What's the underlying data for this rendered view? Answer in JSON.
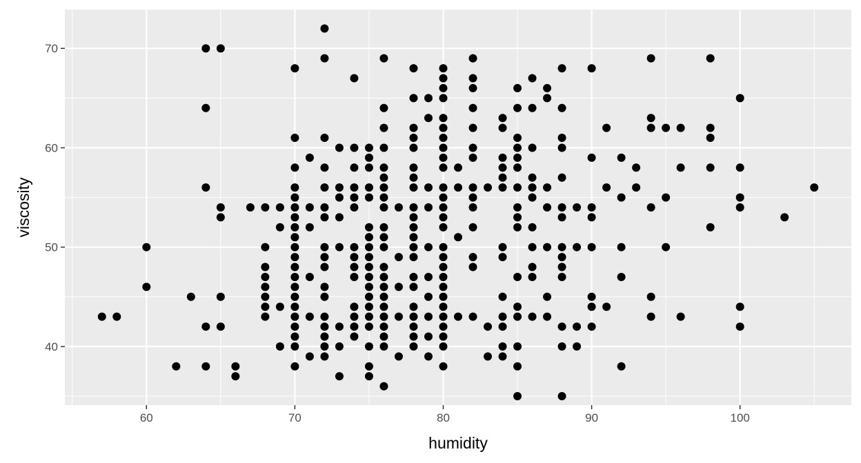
{
  "chart_data": {
    "type": "scatter",
    "title": "",
    "xlabel": "humidity",
    "ylabel": "viscosity",
    "xlim": [
      54.5,
      107.5
    ],
    "ylim": [
      34.1,
      73.9
    ],
    "grid": true,
    "legend": "none",
    "x_ticks": [
      {
        "value": 60,
        "label": "60"
      },
      {
        "value": 70,
        "label": "70"
      },
      {
        "value": 80,
        "label": "80"
      },
      {
        "value": 90,
        "label": "90"
      },
      {
        "value": 100,
        "label": "100"
      }
    ],
    "y_ticks": [
      {
        "value": 40,
        "label": "40"
      },
      {
        "value": 50,
        "label": "50"
      },
      {
        "value": 60,
        "label": "60"
      },
      {
        "value": 70,
        "label": "70"
      }
    ],
    "colors": {
      "panel": "#ebebeb",
      "grid": "#ffffff",
      "point": "#000000",
      "axis_text": "#4d4d4d",
      "tick": "#333333"
    },
    "points": [
      [
        57,
        43
      ],
      [
        58,
        43
      ],
      [
        60,
        50
      ],
      [
        60,
        46
      ],
      [
        62,
        38
      ],
      [
        63,
        45
      ],
      [
        64,
        70
      ],
      [
        64,
        64
      ],
      [
        64,
        56
      ],
      [
        64,
        42
      ],
      [
        64,
        38
      ],
      [
        65,
        70
      ],
      [
        65,
        54
      ],
      [
        65,
        53
      ],
      [
        65,
        45
      ],
      [
        65,
        42
      ],
      [
        66,
        38
      ],
      [
        66,
        37
      ],
      [
        67,
        54
      ],
      [
        68,
        54
      ],
      [
        68,
        50
      ],
      [
        68,
        48
      ],
      [
        68,
        47
      ],
      [
        68,
        46
      ],
      [
        68,
        45
      ],
      [
        68,
        44
      ],
      [
        68,
        43
      ],
      [
        69,
        54
      ],
      [
        69,
        52
      ],
      [
        69,
        44
      ],
      [
        69,
        40
      ],
      [
        70,
        68
      ],
      [
        70,
        61
      ],
      [
        70,
        58
      ],
      [
        70,
        56
      ],
      [
        70,
        55
      ],
      [
        70,
        54
      ],
      [
        70,
        53
      ],
      [
        70,
        52
      ],
      [
        70,
        51
      ],
      [
        70,
        50
      ],
      [
        70,
        49
      ],
      [
        70,
        48
      ],
      [
        70,
        47
      ],
      [
        70,
        46
      ],
      [
        70,
        45
      ],
      [
        70,
        44
      ],
      [
        70,
        43
      ],
      [
        70,
        42
      ],
      [
        70,
        41
      ],
      [
        70,
        40
      ],
      [
        70,
        38
      ],
      [
        71,
        59
      ],
      [
        71,
        54
      ],
      [
        71,
        52
      ],
      [
        71,
        47
      ],
      [
        71,
        43
      ],
      [
        71,
        39
      ],
      [
        72,
        72
      ],
      [
        72,
        69
      ],
      [
        72,
        61
      ],
      [
        72,
        58
      ],
      [
        72,
        56
      ],
      [
        72,
        54
      ],
      [
        72,
        53
      ],
      [
        72,
        50
      ],
      [
        72,
        49
      ],
      [
        72,
        48
      ],
      [
        72,
        46
      ],
      [
        72,
        45
      ],
      [
        72,
        43
      ],
      [
        72,
        42
      ],
      [
        72,
        41
      ],
      [
        72,
        40
      ],
      [
        72,
        39
      ],
      [
        73,
        60
      ],
      [
        73,
        56
      ],
      [
        73,
        55
      ],
      [
        73,
        53
      ],
      [
        73,
        50
      ],
      [
        73,
        42
      ],
      [
        73,
        40
      ],
      [
        73,
        37
      ],
      [
        74,
        67
      ],
      [
        74,
        60
      ],
      [
        74,
        58
      ],
      [
        74,
        56
      ],
      [
        74,
        55
      ],
      [
        74,
        54
      ],
      [
        74,
        50
      ],
      [
        74,
        49
      ],
      [
        74,
        48
      ],
      [
        74,
        47
      ],
      [
        74,
        44
      ],
      [
        74,
        43
      ],
      [
        74,
        42
      ],
      [
        74,
        41
      ],
      [
        75,
        60
      ],
      [
        75,
        59
      ],
      [
        75,
        58
      ],
      [
        75,
        56
      ],
      [
        75,
        55
      ],
      [
        75,
        52
      ],
      [
        75,
        51
      ],
      [
        75,
        50
      ],
      [
        75,
        49
      ],
      [
        75,
        48
      ],
      [
        75,
        47
      ],
      [
        75,
        46
      ],
      [
        75,
        45
      ],
      [
        75,
        44
      ],
      [
        75,
        43
      ],
      [
        75,
        42
      ],
      [
        75,
        40
      ],
      [
        75,
        38
      ],
      [
        75,
        37
      ],
      [
        76,
        69
      ],
      [
        76,
        64
      ],
      [
        76,
        62
      ],
      [
        76,
        60
      ],
      [
        76,
        58
      ],
      [
        76,
        57
      ],
      [
        76,
        56
      ],
      [
        76,
        55
      ],
      [
        76,
        54
      ],
      [
        76,
        52
      ],
      [
        76,
        51
      ],
      [
        76,
        50
      ],
      [
        76,
        48
      ],
      [
        76,
        47
      ],
      [
        76,
        46
      ],
      [
        76,
        45
      ],
      [
        76,
        44
      ],
      [
        76,
        43
      ],
      [
        76,
        42
      ],
      [
        76,
        41
      ],
      [
        76,
        40
      ],
      [
        76,
        36
      ],
      [
        77,
        54
      ],
      [
        77,
        49
      ],
      [
        77,
        46
      ],
      [
        77,
        43
      ],
      [
        77,
        39
      ],
      [
        78,
        68
      ],
      [
        78,
        65
      ],
      [
        78,
        62
      ],
      [
        78,
        61
      ],
      [
        78,
        60
      ],
      [
        78,
        58
      ],
      [
        78,
        57
      ],
      [
        78,
        56
      ],
      [
        78,
        54
      ],
      [
        78,
        53
      ],
      [
        78,
        52
      ],
      [
        78,
        51
      ],
      [
        78,
        50
      ],
      [
        78,
        49
      ],
      [
        78,
        47
      ],
      [
        78,
        46
      ],
      [
        78,
        44
      ],
      [
        78,
        43
      ],
      [
        78,
        42
      ],
      [
        78,
        41
      ],
      [
        78,
        40
      ],
      [
        79,
        65
      ],
      [
        79,
        63
      ],
      [
        79,
        56
      ],
      [
        79,
        54
      ],
      [
        79,
        50
      ],
      [
        79,
        47
      ],
      [
        79,
        45
      ],
      [
        79,
        43
      ],
      [
        79,
        41
      ],
      [
        79,
        39
      ],
      [
        80,
        68
      ],
      [
        80,
        67
      ],
      [
        80,
        66
      ],
      [
        80,
        65
      ],
      [
        80,
        63
      ],
      [
        80,
        62
      ],
      [
        80,
        61
      ],
      [
        80,
        60
      ],
      [
        80,
        59
      ],
      [
        80,
        58
      ],
      [
        80,
        56
      ],
      [
        80,
        55
      ],
      [
        80,
        54
      ],
      [
        80,
        53
      ],
      [
        80,
        52
      ],
      [
        80,
        50
      ],
      [
        80,
        49
      ],
      [
        80,
        48
      ],
      [
        80,
        47
      ],
      [
        80,
        46
      ],
      [
        80,
        45
      ],
      [
        80,
        44
      ],
      [
        80,
        43
      ],
      [
        80,
        42
      ],
      [
        80,
        41
      ],
      [
        80,
        40
      ],
      [
        80,
        38
      ],
      [
        81,
        58
      ],
      [
        81,
        56
      ],
      [
        81,
        51
      ],
      [
        81,
        43
      ],
      [
        82,
        69
      ],
      [
        82,
        67
      ],
      [
        82,
        66
      ],
      [
        82,
        64
      ],
      [
        82,
        62
      ],
      [
        82,
        60
      ],
      [
        82,
        59
      ],
      [
        82,
        56
      ],
      [
        82,
        55
      ],
      [
        82,
        54
      ],
      [
        82,
        52
      ],
      [
        82,
        49
      ],
      [
        82,
        48
      ],
      [
        82,
        43
      ],
      [
        83,
        56
      ],
      [
        83,
        42
      ],
      [
        83,
        39
      ],
      [
        84,
        63
      ],
      [
        84,
        62
      ],
      [
        84,
        59
      ],
      [
        84,
        58
      ],
      [
        84,
        57
      ],
      [
        84,
        56
      ],
      [
        84,
        50
      ],
      [
        84,
        49
      ],
      [
        84,
        45
      ],
      [
        84,
        43
      ],
      [
        84,
        42
      ],
      [
        84,
        40
      ],
      [
        84,
        39
      ],
      [
        85,
        66
      ],
      [
        85,
        64
      ],
      [
        85,
        61
      ],
      [
        85,
        60
      ],
      [
        85,
        59
      ],
      [
        85,
        58
      ],
      [
        85,
        56
      ],
      [
        85,
        54
      ],
      [
        85,
        53
      ],
      [
        85,
        52
      ],
      [
        85,
        47
      ],
      [
        85,
        44
      ],
      [
        85,
        43
      ],
      [
        85,
        40
      ],
      [
        85,
        38
      ],
      [
        85,
        35
      ],
      [
        86,
        67
      ],
      [
        86,
        64
      ],
      [
        86,
        60
      ],
      [
        86,
        57
      ],
      [
        86,
        56
      ],
      [
        86,
        55
      ],
      [
        86,
        52
      ],
      [
        86,
        50
      ],
      [
        86,
        48
      ],
      [
        86,
        47
      ],
      [
        86,
        43
      ],
      [
        87,
        66
      ],
      [
        87,
        65
      ],
      [
        87,
        56
      ],
      [
        87,
        54
      ],
      [
        87,
        50
      ],
      [
        87,
        45
      ],
      [
        87,
        43
      ],
      [
        88,
        68
      ],
      [
        88,
        64
      ],
      [
        88,
        61
      ],
      [
        88,
        60
      ],
      [
        88,
        57
      ],
      [
        88,
        54
      ],
      [
        88,
        53
      ],
      [
        88,
        50
      ],
      [
        88,
        49
      ],
      [
        88,
        48
      ],
      [
        88,
        47
      ],
      [
        88,
        42
      ],
      [
        88,
        40
      ],
      [
        88,
        35
      ],
      [
        89,
        54
      ],
      [
        89,
        50
      ],
      [
        89,
        42
      ],
      [
        89,
        40
      ],
      [
        90,
        68
      ],
      [
        90,
        59
      ],
      [
        90,
        54
      ],
      [
        90,
        53
      ],
      [
        90,
        50
      ],
      [
        90,
        45
      ],
      [
        90,
        44
      ],
      [
        90,
        42
      ],
      [
        91,
        62
      ],
      [
        91,
        56
      ],
      [
        91,
        44
      ],
      [
        92,
        59
      ],
      [
        92,
        55
      ],
      [
        92,
        50
      ],
      [
        92,
        47
      ],
      [
        92,
        38
      ],
      [
        93,
        58
      ],
      [
        93,
        56
      ],
      [
        94,
        69
      ],
      [
        94,
        63
      ],
      [
        94,
        62
      ],
      [
        94,
        54
      ],
      [
        94,
        45
      ],
      [
        94,
        43
      ],
      [
        95,
        62
      ],
      [
        95,
        55
      ],
      [
        95,
        50
      ],
      [
        96,
        62
      ],
      [
        96,
        58
      ],
      [
        96,
        43
      ],
      [
        98,
        69
      ],
      [
        98,
        62
      ],
      [
        98,
        61
      ],
      [
        98,
        58
      ],
      [
        98,
        52
      ],
      [
        100,
        65
      ],
      [
        100,
        58
      ],
      [
        100,
        55
      ],
      [
        100,
        54
      ],
      [
        100,
        44
      ],
      [
        100,
        42
      ],
      [
        103,
        53
      ],
      [
        105,
        56
      ]
    ]
  }
}
